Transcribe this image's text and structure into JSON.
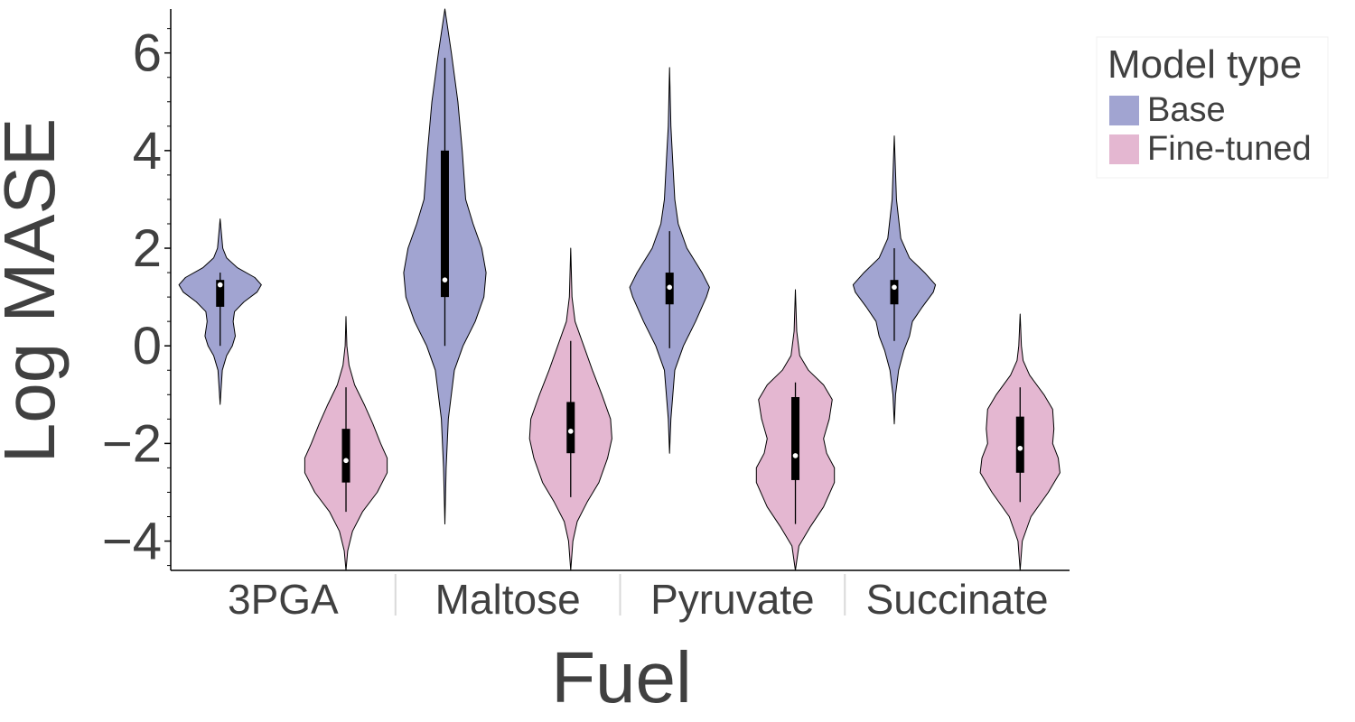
{
  "chart_data": {
    "type": "violin",
    "xlabel": "Fuel",
    "ylabel": "Log MASE",
    "categories": [
      "3PGA",
      "Maltose",
      "Pyruvate",
      "Succinate"
    ],
    "ylim": [
      -4.6,
      6.9
    ],
    "yticks": [
      -4,
      -2,
      0,
      2,
      4,
      6
    ],
    "ytick_labels": [
      "−4",
      "−2",
      "0",
      "2",
      "4",
      "6"
    ],
    "grid": false,
    "legend": {
      "title": "Model type",
      "position": "top-right",
      "entries": [
        "Base",
        "Fine-tuned"
      ]
    },
    "series": [
      {
        "name": "Base",
        "color": "#a1a4d1",
        "violins": [
          {
            "category": "3PGA",
            "median": 1.25,
            "q1": 0.8,
            "q3": 1.35,
            "whisker_low": 0.0,
            "whisker_high": 1.5,
            "min": -1.2,
            "max": 2.6,
            "profile": [
              [
                -1.2,
                0.0
              ],
              [
                -0.5,
                0.05
              ],
              [
                -0.2,
                0.15
              ],
              [
                0.0,
                0.28
              ],
              [
                0.2,
                0.35
              ],
              [
                0.5,
                0.3
              ],
              [
                0.7,
                0.33
              ],
              [
                0.9,
                0.55
              ],
              [
                1.1,
                0.85
              ],
              [
                1.25,
                0.95
              ],
              [
                1.4,
                0.8
              ],
              [
                1.6,
                0.4
              ],
              [
                1.8,
                0.15
              ],
              [
                2.0,
                0.06
              ],
              [
                2.6,
                0.0
              ]
            ]
          },
          {
            "category": "Maltose",
            "median": 1.35,
            "q1": 1.0,
            "q3": 4.0,
            "whisker_low": 0.0,
            "whisker_high": 5.9,
            "min": -3.65,
            "max": 6.9,
            "profile": [
              [
                -3.65,
                0.0
              ],
              [
                -2.5,
                0.03
              ],
              [
                -1.5,
                0.08
              ],
              [
                -0.5,
                0.22
              ],
              [
                0.0,
                0.42
              ],
              [
                0.5,
                0.7
              ],
              [
                1.0,
                0.9
              ],
              [
                1.5,
                0.95
              ],
              [
                2.0,
                0.85
              ],
              [
                2.5,
                0.65
              ],
              [
                3.0,
                0.48
              ],
              [
                4.0,
                0.4
              ],
              [
                5.0,
                0.3
              ],
              [
                6.0,
                0.15
              ],
              [
                6.6,
                0.05
              ],
              [
                6.9,
                0.0
              ]
            ]
          },
          {
            "category": "Pyruvate",
            "median": 1.2,
            "q1": 0.85,
            "q3": 1.5,
            "whisker_low": -0.05,
            "whisker_high": 2.35,
            "min": -2.2,
            "max": 5.7,
            "profile": [
              [
                -2.2,
                0.0
              ],
              [
                -1.5,
                0.03
              ],
              [
                -0.5,
                0.12
              ],
              [
                0.0,
                0.32
              ],
              [
                0.5,
                0.6
              ],
              [
                1.0,
                0.85
              ],
              [
                1.2,
                0.92
              ],
              [
                1.5,
                0.75
              ],
              [
                2.0,
                0.4
              ],
              [
                2.5,
                0.2
              ],
              [
                3.0,
                0.12
              ],
              [
                4.0,
                0.06
              ],
              [
                4.5,
                0.03
              ],
              [
                5.7,
                0.0
              ]
            ]
          },
          {
            "category": "Succinate",
            "median": 1.2,
            "q1": 0.85,
            "q3": 1.35,
            "whisker_low": 0.1,
            "whisker_high": 2.0,
            "min": -1.6,
            "max": 4.3,
            "profile": [
              [
                -1.6,
                0.0
              ],
              [
                -1.0,
                0.03
              ],
              [
                -0.5,
                0.1
              ],
              [
                -0.1,
                0.22
              ],
              [
                0.2,
                0.35
              ],
              [
                0.5,
                0.42
              ],
              [
                0.8,
                0.65
              ],
              [
                1.1,
                0.9
              ],
              [
                1.25,
                0.95
              ],
              [
                1.5,
                0.7
              ],
              [
                1.8,
                0.35
              ],
              [
                2.2,
                0.15
              ],
              [
                3.0,
                0.05
              ],
              [
                4.3,
                0.0
              ]
            ]
          }
        ]
      },
      {
        "name": "Fine-tuned",
        "color": "#e4b7d1",
        "violins": [
          {
            "category": "3PGA",
            "median": -2.35,
            "q1": -2.8,
            "q3": -1.7,
            "whisker_low": -3.4,
            "whisker_high": -0.85,
            "min": -4.6,
            "max": 0.6,
            "profile": [
              [
                -4.6,
                0.0
              ],
              [
                -4.2,
                0.04
              ],
              [
                -3.8,
                0.15
              ],
              [
                -3.4,
                0.38
              ],
              [
                -3.0,
                0.72
              ],
              [
                -2.6,
                0.95
              ],
              [
                -2.3,
                0.95
              ],
              [
                -2.0,
                0.8
              ],
              [
                -1.6,
                0.62
              ],
              [
                -1.2,
                0.42
              ],
              [
                -0.8,
                0.2
              ],
              [
                -0.4,
                0.07
              ],
              [
                0.0,
                0.02
              ],
              [
                0.6,
                0.0
              ]
            ]
          },
          {
            "category": "Maltose",
            "median": -1.75,
            "q1": -2.2,
            "q3": -1.15,
            "whisker_low": -3.1,
            "whisker_high": 0.1,
            "min": -4.6,
            "max": 2.0,
            "profile": [
              [
                -4.6,
                0.0
              ],
              [
                -4.0,
                0.05
              ],
              [
                -3.6,
                0.15
              ],
              [
                -3.2,
                0.38
              ],
              [
                -2.8,
                0.65
              ],
              [
                -2.3,
                0.85
              ],
              [
                -1.9,
                0.95
              ],
              [
                -1.5,
                0.92
              ],
              [
                -1.0,
                0.72
              ],
              [
                -0.5,
                0.5
              ],
              [
                0.0,
                0.3
              ],
              [
                0.5,
                0.1
              ],
              [
                1.0,
                0.03
              ],
              [
                2.0,
                0.0
              ]
            ]
          },
          {
            "category": "Pyruvate",
            "median": -2.25,
            "q1": -2.75,
            "q3": -1.05,
            "whisker_low": -3.65,
            "whisker_high": -0.75,
            "min": -4.6,
            "max": 1.15,
            "profile": [
              [
                -4.6,
                0.0
              ],
              [
                -4.1,
                0.08
              ],
              [
                -3.7,
                0.35
              ],
              [
                -3.3,
                0.65
              ],
              [
                -2.8,
                0.9
              ],
              [
                -2.5,
                0.9
              ],
              [
                -2.2,
                0.72
              ],
              [
                -1.9,
                0.65
              ],
              [
                -1.5,
                0.78
              ],
              [
                -1.1,
                0.85
              ],
              [
                -0.8,
                0.65
              ],
              [
                -0.5,
                0.3
              ],
              [
                -0.2,
                0.1
              ],
              [
                0.3,
                0.03
              ],
              [
                1.15,
                0.0
              ]
            ]
          },
          {
            "category": "Succinate",
            "median": -2.1,
            "q1": -2.6,
            "q3": -1.45,
            "whisker_low": -3.2,
            "whisker_high": -0.85,
            "min": -4.6,
            "max": 0.65,
            "profile": [
              [
                -4.6,
                0.0
              ],
              [
                -4.0,
                0.05
              ],
              [
                -3.5,
                0.25
              ],
              [
                -3.0,
                0.65
              ],
              [
                -2.6,
                0.92
              ],
              [
                -2.3,
                0.88
              ],
              [
                -2.0,
                0.75
              ],
              [
                -1.7,
                0.78
              ],
              [
                -1.3,
                0.75
              ],
              [
                -1.0,
                0.55
              ],
              [
                -0.6,
                0.22
              ],
              [
                -0.3,
                0.07
              ],
              [
                0.0,
                0.03
              ],
              [
                0.65,
                0.0
              ]
            ]
          }
        ]
      }
    ]
  }
}
